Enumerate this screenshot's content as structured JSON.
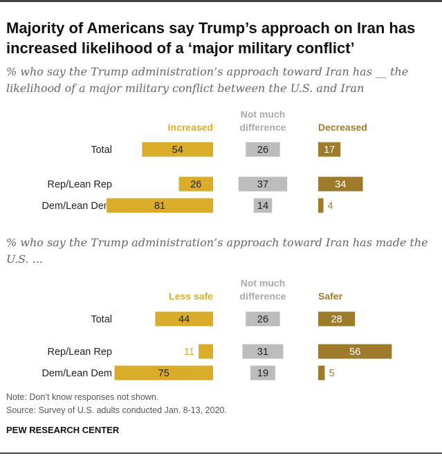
{
  "title": "Majority of Americans say Trump’s approach on Iran has increased likelihood of a ‘major military conflict’",
  "note": "Note: Don’t know responses not shown.",
  "source": "Source: Survey of U.S. adults conducted Jan. 8-13, 2020.",
  "brand": "PEW RESEARCH CENTER",
  "colors": {
    "gold": "#d9ad2a",
    "gray": "#bcbcbc",
    "olive": "#9c7c2b",
    "label_gray": "#aaaaaa"
  },
  "chart_data": [
    {
      "type": "bar",
      "title": "% who say the Trump administration’s approach toward Iran has __ the likelihood of a major military conflict between the U.S. and Iran",
      "categories": [
        "Total",
        "Rep/Lean Rep",
        "Dem/Lean Dem"
      ],
      "series": [
        {
          "name": "Increased",
          "values": [
            54,
            26,
            81
          ]
        },
        {
          "name": "Not much difference",
          "values": [
            26,
            37,
            14
          ]
        },
        {
          "name": "Decreased",
          "values": [
            17,
            34,
            4
          ]
        }
      ]
    },
    {
      "type": "bar",
      "title": "% who say the Trump administration’s approach toward Iran has made the U.S. ...",
      "categories": [
        "Total",
        "Rep/Lean Rep",
        "Dem/Lean Dem"
      ],
      "series": [
        {
          "name": "Less safe",
          "values": [
            44,
            11,
            75
          ]
        },
        {
          "name": "Not much difference",
          "values": [
            26,
            31,
            19
          ]
        },
        {
          "name": "Safer",
          "values": [
            28,
            56,
            5
          ]
        }
      ]
    }
  ]
}
